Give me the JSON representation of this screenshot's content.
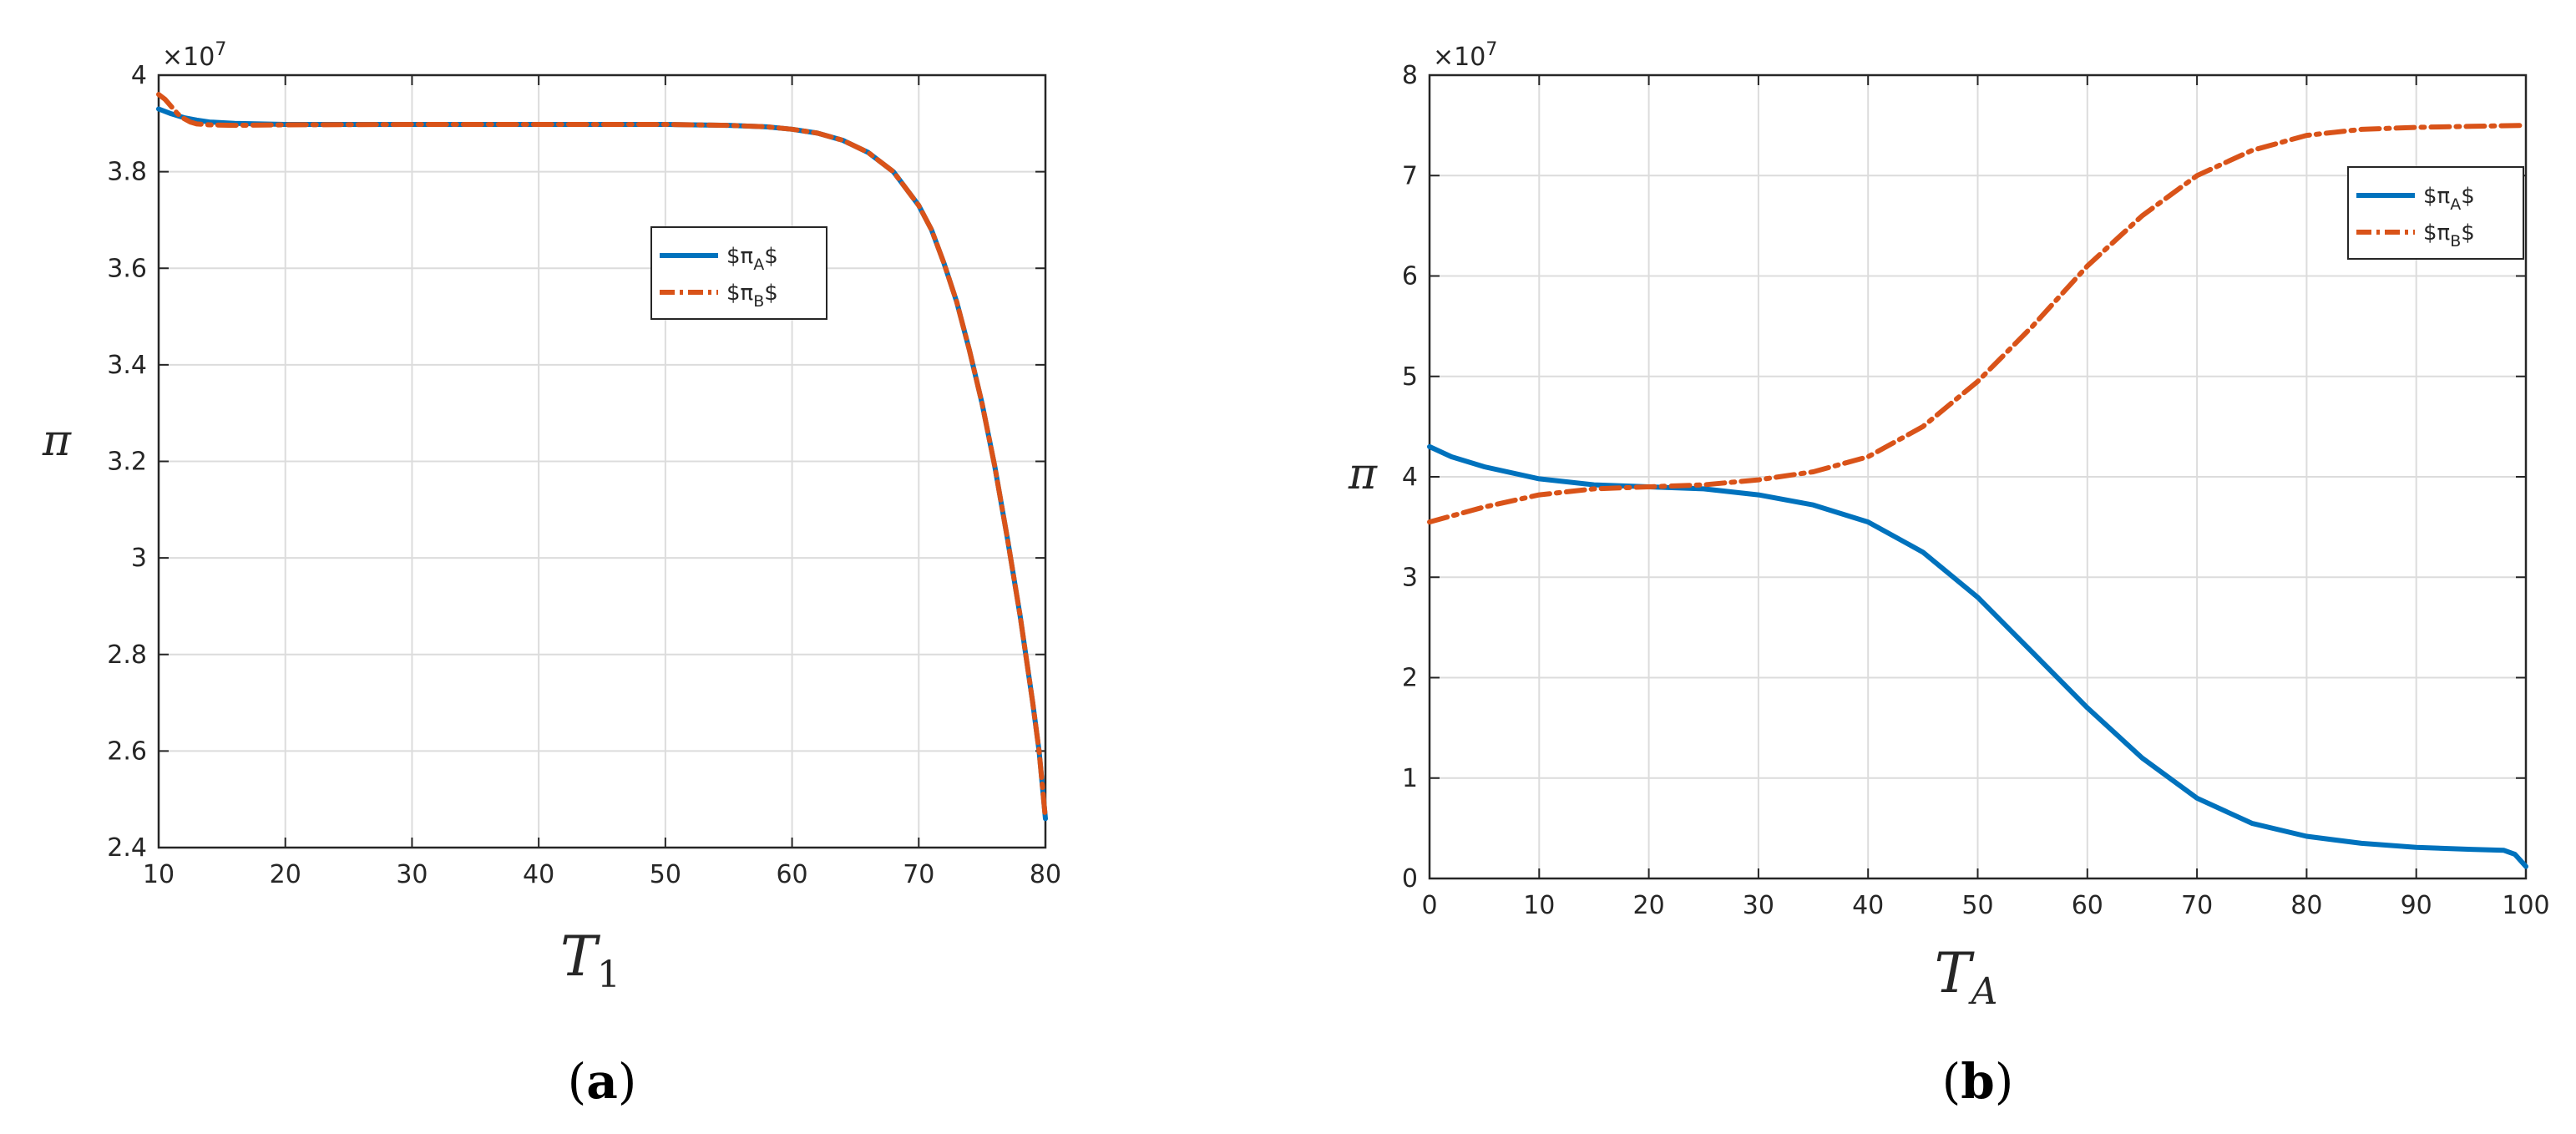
{
  "chart_data": [
    {
      "type": "line",
      "caption_letter": "a",
      "caption_open": "(",
      "caption_close": ")",
      "xlabel_main": "T",
      "xlabel_sub": "1",
      "ylabel": "π",
      "exponent_label": "×10",
      "exponent_power": "7",
      "xlim": [
        10,
        80
      ],
      "ylim": [
        2.4,
        4.0
      ],
      "xticks": [
        10,
        20,
        30,
        40,
        50,
        60,
        70,
        80
      ],
      "xtick_labels": [
        "10",
        "20",
        "30",
        "40",
        "50",
        "60",
        "70",
        "80"
      ],
      "yticks": [
        2.4,
        2.6,
        2.8,
        3.0,
        3.2,
        3.4,
        3.6,
        3.8,
        4.0
      ],
      "ytick_labels": [
        "2.4",
        "2.6",
        "2.8",
        "3",
        "3.2",
        "3.4",
        "3.6",
        "3.8",
        "4"
      ],
      "grid": true,
      "legend_position": "upper-right",
      "series": [
        {
          "name": "$π_A$",
          "legend_prefix": "$π",
          "legend_sub": "A",
          "legend_suffix": "$",
          "color": "#0072BD",
          "style": "solid",
          "x": [
            10,
            11,
            12,
            13,
            14,
            16,
            20,
            30,
            40,
            50,
            55,
            58,
            60,
            62,
            64,
            66,
            68,
            70,
            71,
            72,
            73,
            74,
            75,
            76,
            77,
            78,
            79,
            79.5,
            80
          ],
          "y": [
            3.93,
            3.92,
            3.912,
            3.907,
            3.903,
            3.9,
            3.898,
            3.898,
            3.898,
            3.898,
            3.896,
            3.893,
            3.888,
            3.88,
            3.865,
            3.84,
            3.8,
            3.73,
            3.68,
            3.61,
            3.53,
            3.43,
            3.32,
            3.19,
            3.04,
            2.88,
            2.7,
            2.6,
            2.46
          ]
        },
        {
          "name": "$π_B$",
          "legend_prefix": "$π",
          "legend_sub": "B",
          "legend_suffix": "$",
          "color": "#D95319",
          "style": "dashdot",
          "x": [
            10,
            10.5,
            11,
            11.5,
            12,
            12.5,
            13,
            14,
            16,
            20,
            30,
            40,
            50,
            55,
            58,
            60,
            62,
            64,
            66,
            68,
            70,
            71,
            72,
            73,
            74,
            75,
            76,
            77,
            78,
            79,
            79.5,
            80
          ],
          "y": [
            3.96,
            3.95,
            3.935,
            3.92,
            3.91,
            3.903,
            3.899,
            3.897,
            3.896,
            3.897,
            3.898,
            3.898,
            3.898,
            3.896,
            3.893,
            3.888,
            3.88,
            3.865,
            3.84,
            3.8,
            3.73,
            3.68,
            3.61,
            3.53,
            3.43,
            3.32,
            3.19,
            3.04,
            2.88,
            2.7,
            2.6,
            2.46
          ]
        }
      ]
    },
    {
      "type": "line",
      "caption_letter": "b",
      "caption_open": "(",
      "caption_close": ")",
      "xlabel_main": "T",
      "xlabel_sub": "A",
      "ylabel": "π",
      "exponent_label": "×10",
      "exponent_power": "7",
      "xlim": [
        0,
        100
      ],
      "ylim": [
        0,
        8
      ],
      "xticks": [
        0,
        10,
        20,
        30,
        40,
        50,
        60,
        70,
        80,
        90,
        100
      ],
      "xtick_labels": [
        "0",
        "10",
        "20",
        "30",
        "40",
        "50",
        "60",
        "70",
        "80",
        "90",
        "100"
      ],
      "yticks": [
        0,
        1,
        2,
        3,
        4,
        5,
        6,
        7,
        8
      ],
      "ytick_labels": [
        "0",
        "1",
        "2",
        "3",
        "4",
        "5",
        "6",
        "7",
        "8"
      ],
      "grid": true,
      "legend_position": "upper-right",
      "series": [
        {
          "name": "$π_A$",
          "legend_prefix": "$π",
          "legend_sub": "A",
          "legend_suffix": "$",
          "color": "#0072BD",
          "style": "solid",
          "x": [
            0,
            2,
            5,
            10,
            15,
            20,
            25,
            30,
            35,
            40,
            45,
            50,
            55,
            60,
            65,
            70,
            75,
            80,
            85,
            90,
            95,
            98,
            99,
            100
          ],
          "y": [
            4.3,
            4.2,
            4.1,
            3.98,
            3.92,
            3.9,
            3.88,
            3.82,
            3.72,
            3.55,
            3.25,
            2.8,
            2.25,
            1.7,
            1.2,
            0.8,
            0.55,
            0.42,
            0.35,
            0.31,
            0.29,
            0.28,
            0.24,
            0.12
          ]
        },
        {
          "name": "$π_B$",
          "legend_prefix": "$π",
          "legend_sub": "B",
          "legend_suffix": "$",
          "color": "#D95319",
          "style": "dashdot",
          "x": [
            0,
            5,
            10,
            15,
            20,
            25,
            30,
            35,
            40,
            45,
            50,
            55,
            60,
            65,
            70,
            75,
            80,
            85,
            90,
            95,
            100
          ],
          "y": [
            3.55,
            3.7,
            3.82,
            3.88,
            3.9,
            3.92,
            3.97,
            4.05,
            4.2,
            4.5,
            4.95,
            5.5,
            6.1,
            6.6,
            7.0,
            7.25,
            7.4,
            7.46,
            7.48,
            7.49,
            7.5
          ]
        }
      ]
    }
  ]
}
